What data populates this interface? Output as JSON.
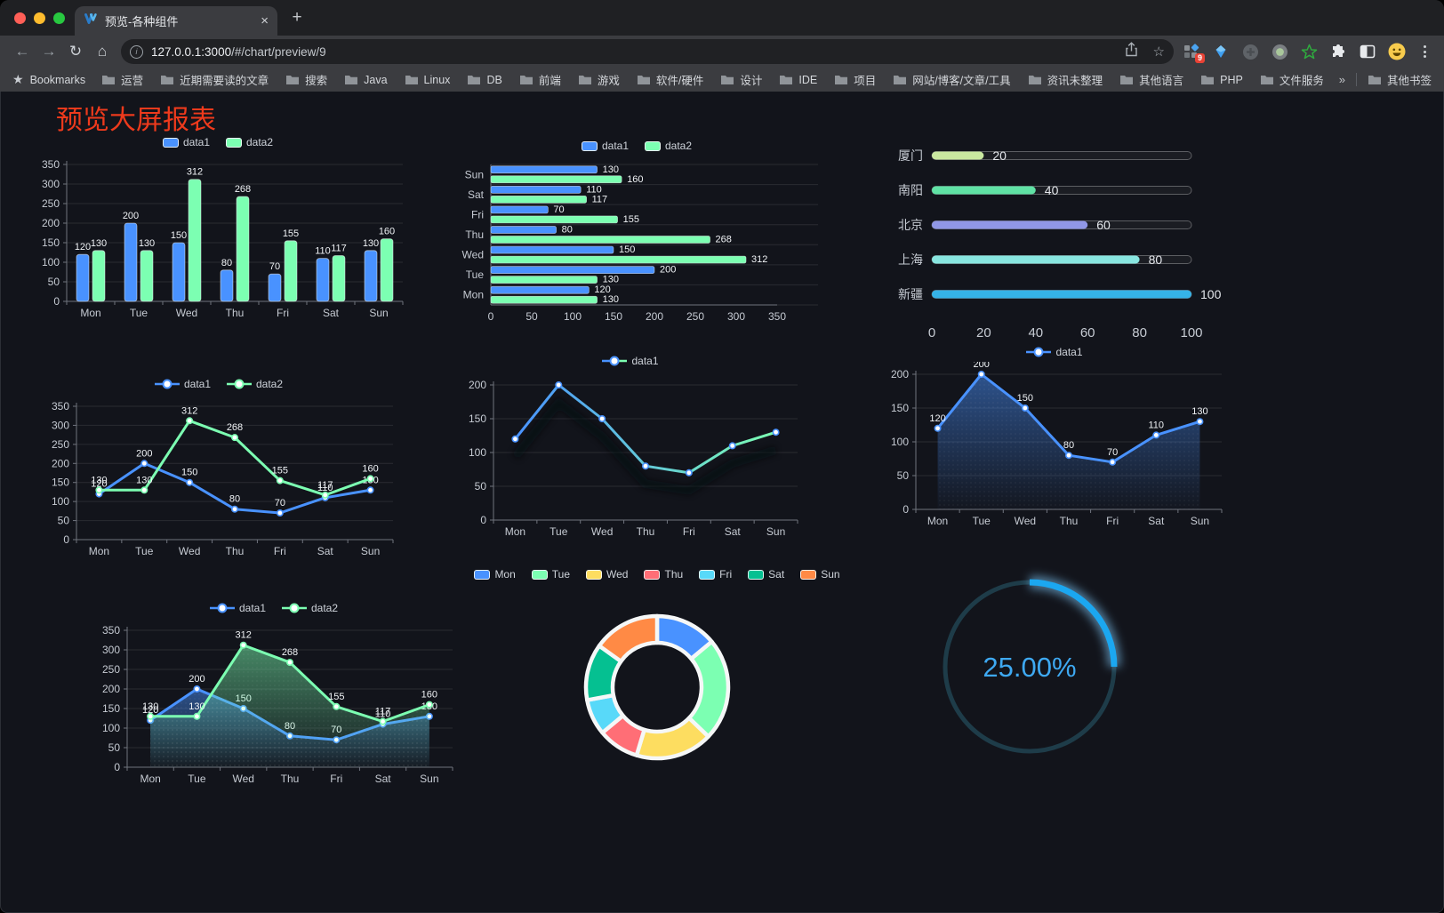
{
  "browser": {
    "tab_title": "预览-各种组件",
    "url_host": "127.0.0.1:3000",
    "url_path": "/#/chart/preview/9",
    "bookmarks_label": "Bookmarks",
    "bookmarks": [
      "运营",
      "近期需要读的文章",
      "搜索",
      "Java",
      "Linux",
      "DB",
      "前端",
      "游戏",
      "软件/硬件",
      "设计",
      "IDE",
      "项目",
      "网站/博客/文章/工具",
      "资讯未整理",
      "其他语言",
      "PHP",
      "文件服务器"
    ],
    "other_bookmarks": "其他书签",
    "extension_badge": "9"
  },
  "icons": {
    "close_tab": "×",
    "new_tab": "+",
    "back": "←",
    "forward": "→",
    "reload": "↻",
    "home": "⌂",
    "info": "i",
    "bookmarks_star": "★",
    "url_star": "☆",
    "overflow": "»"
  },
  "page": {
    "title": "预览大屏报表",
    "title_color": "#ee3a1c",
    "background": "#12141b"
  },
  "colors": {
    "series_blue": "#4992ff",
    "series_green": "#7cffb2",
    "axis_text": "#c6cbd3",
    "value_label": "#f0f3f6",
    "gauge_blue": "#1ba7f0"
  },
  "chart_data": [
    {
      "type": "bar",
      "categories": [
        "Mon",
        "Tue",
        "Wed",
        "Thu",
        "Fri",
        "Sat",
        "Sun"
      ],
      "series": [
        {
          "name": "data1",
          "color": "#4992ff",
          "values": [
            120,
            200,
            150,
            80,
            70,
            110,
            130
          ]
        },
        {
          "name": "data2",
          "color": "#7cffb2",
          "values": [
            130,
            130,
            312,
            268,
            155,
            117,
            160
          ]
        }
      ],
      "y_ticks": [
        0,
        50,
        100,
        150,
        200,
        250,
        300,
        350
      ],
      "value_labels": true
    },
    {
      "type": "bar-horizontal",
      "categories": [
        "Mon",
        "Tue",
        "Wed",
        "Thu",
        "Fri",
        "Sat",
        "Sun"
      ],
      "series": [
        {
          "name": "data1",
          "color": "#4992ff",
          "values": [
            120,
            200,
            150,
            80,
            70,
            110,
            130
          ]
        },
        {
          "name": "data2",
          "color": "#7cffb2",
          "values": [
            130,
            130,
            312,
            268,
            155,
            117,
            160
          ]
        }
      ],
      "x_ticks": [
        0,
        50,
        100,
        150,
        200,
        250,
        300,
        350
      ],
      "value_labels": true
    },
    {
      "type": "progress",
      "max": 100,
      "x_ticks": [
        0,
        20,
        40,
        60,
        80,
        100
      ],
      "items": [
        {
          "label": "厦门",
          "value": 20,
          "color": "#c9e8a0"
        },
        {
          "label": "南阳",
          "value": 40,
          "color": "#60e2a5"
        },
        {
          "label": "北京",
          "value": 60,
          "color": "#9097e6"
        },
        {
          "label": "上海",
          "value": 80,
          "color": "#88e6e0"
        },
        {
          "label": "新疆",
          "value": 100,
          "color": "#35b3e8"
        }
      ]
    },
    {
      "type": "line",
      "categories": [
        "Mon",
        "Tue",
        "Wed",
        "Thu",
        "Fri",
        "Sat",
        "Sun"
      ],
      "series": [
        {
          "name": "data1",
          "color": "#4992ff",
          "values": [
            120,
            200,
            150,
            80,
            70,
            110,
            130
          ]
        },
        {
          "name": "data2",
          "color": "#7cffb2",
          "values": [
            130,
            130,
            312,
            268,
            155,
            117,
            160
          ]
        }
      ],
      "y_ticks": [
        0,
        50,
        100,
        150,
        200,
        250,
        300,
        350
      ],
      "value_labels": true
    },
    {
      "type": "line",
      "categories": [
        "Mon",
        "Tue",
        "Wed",
        "Thu",
        "Fri",
        "Sat",
        "Sun"
      ],
      "series": [
        {
          "name": "data1",
          "color": "#4992ff",
          "color2": "#7cffb2",
          "values": [
            120,
            200,
            150,
            80,
            70,
            110,
            130
          ]
        }
      ],
      "y_ticks": [
        0,
        50,
        100,
        150,
        200
      ],
      "gradient_line": true,
      "shadow": true,
      "value_labels": false
    },
    {
      "type": "line",
      "categories": [
        "Mon",
        "Tue",
        "Wed",
        "Thu",
        "Fri",
        "Sat",
        "Sun"
      ],
      "series": [
        {
          "name": "data1",
          "color": "#4992ff",
          "values": [
            120,
            200,
            150,
            80,
            70,
            110,
            130
          ],
          "area": true
        }
      ],
      "y_ticks": [
        0,
        50,
        100,
        150,
        200
      ],
      "value_labels": true
    },
    {
      "type": "line",
      "categories": [
        "Mon",
        "Tue",
        "Wed",
        "Thu",
        "Fri",
        "Sat",
        "Sun"
      ],
      "series": [
        {
          "name": "data1",
          "color": "#4992ff",
          "values": [
            120,
            200,
            150,
            80,
            70,
            110,
            130
          ],
          "area": true
        },
        {
          "name": "data2",
          "color": "#7cffb2",
          "values": [
            130,
            130,
            312,
            268,
            155,
            117,
            160
          ],
          "area": true
        }
      ],
      "y_ticks": [
        0,
        50,
        100,
        150,
        200,
        250,
        300,
        350
      ],
      "value_labels": true
    },
    {
      "type": "donut",
      "slices": [
        {
          "label": "Mon",
          "value": 120,
          "color": "#4992ff"
        },
        {
          "label": "Tue",
          "value": 200,
          "color": "#7cffb2"
        },
        {
          "label": "Wed",
          "value": 150,
          "color": "#fddd60"
        },
        {
          "label": "Thu",
          "value": 80,
          "color": "#ff6e76"
        },
        {
          "label": "Fri",
          "value": 70,
          "color": "#58d9f9"
        },
        {
          "label": "Sat",
          "value": 110,
          "color": "#05c091"
        },
        {
          "label": "Sun",
          "value": 130,
          "color": "#ff8a45"
        }
      ]
    },
    {
      "type": "gauge",
      "value": 25,
      "label": "25.00%",
      "color": "#1ba7f0"
    }
  ]
}
